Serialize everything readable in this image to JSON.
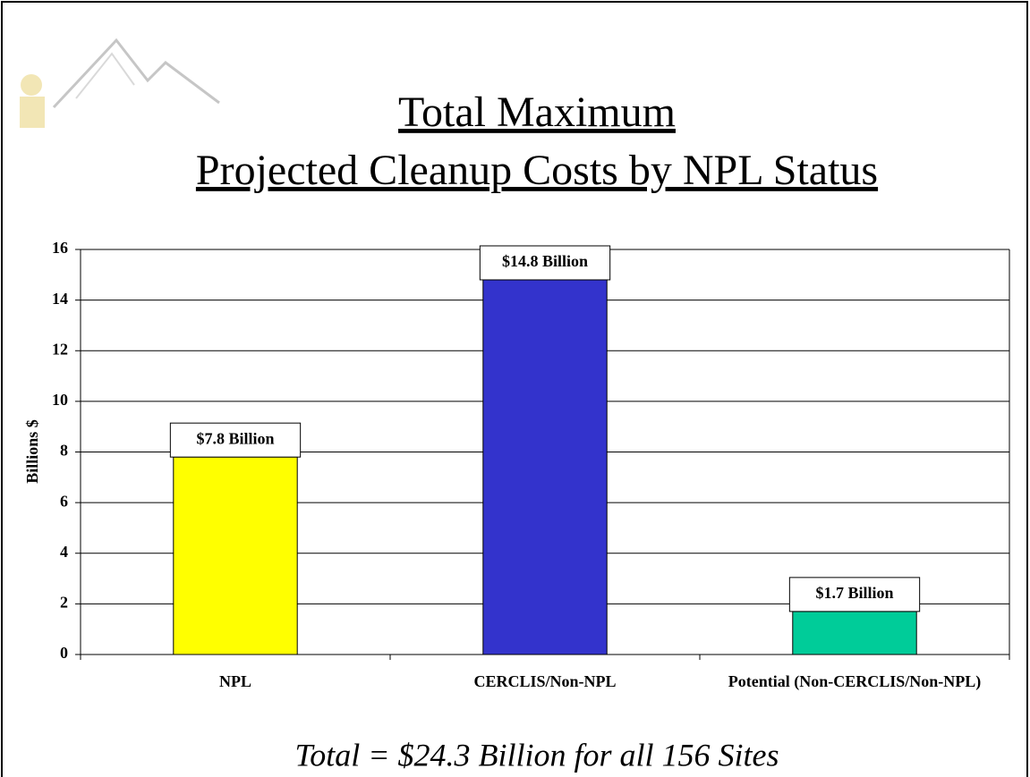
{
  "chart_data": {
    "type": "bar",
    "title": "Total Maximum",
    "subtitle": "Projected Cleanup Costs by NPL Status",
    "y_label": "Billions $",
    "annotation": "Total = $24.3 Billion for all 156 Sites",
    "categories": [
      "NPL",
      "CERCLIS/Non-NPL",
      "Potential (Non-CERCLIS/Non-NPL)"
    ],
    "values": [
      7.8,
      14.8,
      1.7
    ],
    "value_labels": [
      "$7.8 Billion",
      "$14.8 Billion",
      "$1.7 Billion"
    ],
    "colors": [
      "#ffff00",
      "#3333cc",
      "#00cc99"
    ],
    "ylim": [
      0,
      16
    ],
    "yticks": [
      0,
      2,
      4,
      6,
      8,
      10,
      12,
      14,
      16
    ],
    "grid": true
  }
}
